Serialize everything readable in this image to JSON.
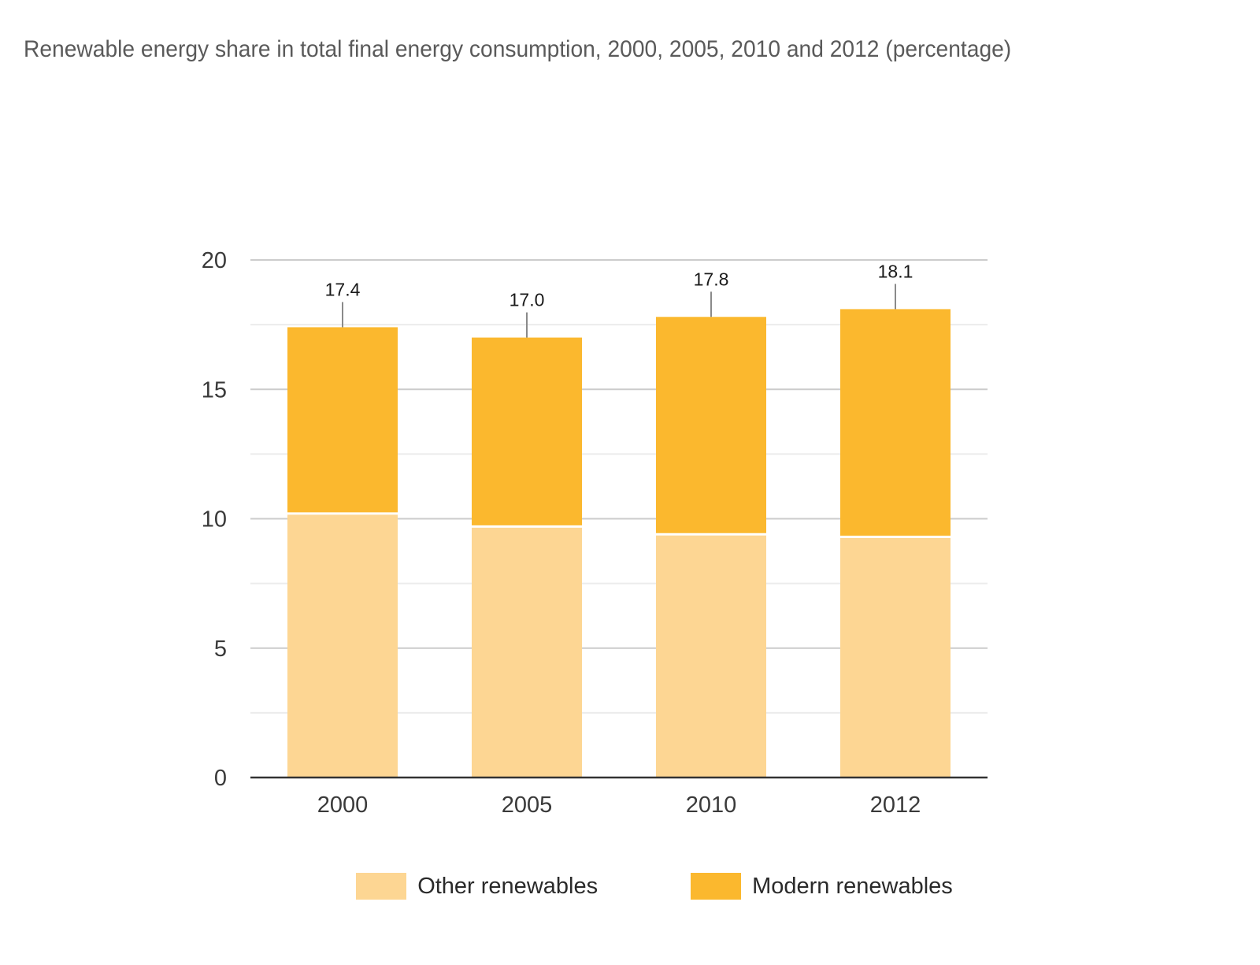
{
  "chart_data": {
    "type": "bar",
    "stacked": true,
    "title": "Renewable energy share in total final energy consumption, 2000, 2005, 2010 and 2012 (percentage)",
    "categories": [
      "2000",
      "2005",
      "2010",
      "2012"
    ],
    "series": [
      {
        "name": "Other renewables",
        "values": [
          10.2,
          9.7,
          9.4,
          9.3
        ],
        "color": "#fdd693"
      },
      {
        "name": "Modern renewables",
        "values": [
          7.2,
          7.3,
          8.4,
          8.8
        ],
        "color": "#fbb82e"
      }
    ],
    "totals": [
      "17.4",
      "17.0",
      "17.8",
      "18.1"
    ],
    "ylim": [
      0,
      20
    ],
    "yticks": [
      "0",
      "5",
      "10",
      "15",
      "20"
    ],
    "grid": true,
    "legend": "bottom-center"
  }
}
